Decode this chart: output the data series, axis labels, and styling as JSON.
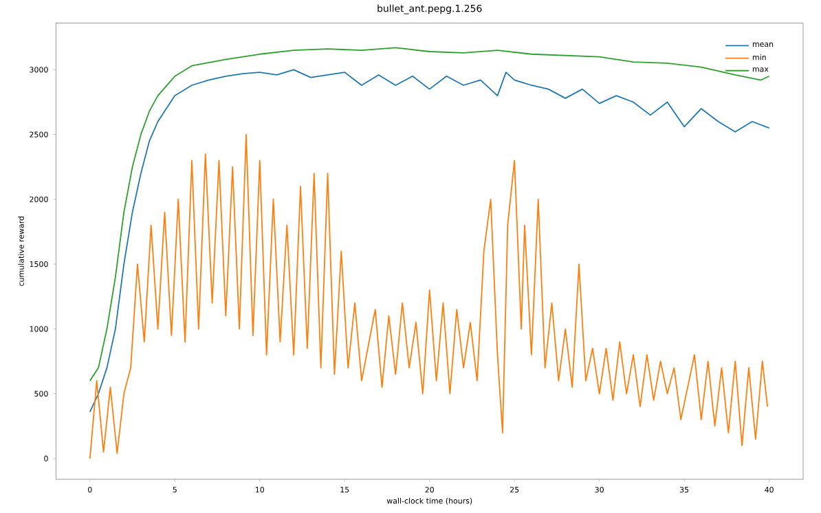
{
  "chart_data": {
    "type": "line",
    "title": "bullet_ant.pepg.1.256",
    "xlabel": "wall-clock time (hours)",
    "ylabel": "cumulative reward",
    "xlim": [
      -2,
      42
    ],
    "ylim": [
      -160,
      3360
    ],
    "xticks": [
      0,
      5,
      10,
      15,
      20,
      25,
      30,
      35,
      40
    ],
    "yticks": [
      0,
      500,
      1000,
      1500,
      2000,
      2500,
      3000
    ],
    "legend": "top right",
    "series": [
      {
        "name": "mean",
        "color": "#1f77b4",
        "x": [
          0,
          0.5,
          1,
          1.5,
          2,
          2.5,
          3,
          3.5,
          4,
          5,
          6,
          7,
          8,
          9,
          10,
          11,
          12,
          13,
          14,
          15,
          16,
          17,
          18,
          19,
          20,
          21,
          22,
          23,
          24,
          24.5,
          25,
          26,
          27,
          28,
          29,
          30,
          31,
          32,
          33,
          34,
          35,
          36,
          37,
          38,
          39,
          40
        ],
        "values": [
          360,
          500,
          700,
          1000,
          1500,
          1900,
          2200,
          2450,
          2600,
          2800,
          2880,
          2920,
          2950,
          2970,
          2980,
          2960,
          3000,
          2940,
          2960,
          2980,
          2880,
          2960,
          2880,
          2950,
          2850,
          2950,
          2880,
          2920,
          2800,
          2980,
          2920,
          2880,
          2850,
          2780,
          2850,
          2740,
          2800,
          2750,
          2650,
          2750,
          2560,
          2700,
          2600,
          2520,
          2600,
          2550
        ]
      },
      {
        "name": "min",
        "color": "#ff7f0e",
        "x": [
          0,
          0.4,
          0.8,
          1.2,
          1.6,
          2.0,
          2.4,
          2.8,
          3.2,
          3.6,
          4.0,
          4.4,
          4.8,
          5.2,
          5.6,
          6.0,
          6.4,
          6.8,
          7.2,
          7.6,
          8.0,
          8.4,
          8.8,
          9.2,
          9.6,
          10.0,
          10.4,
          10.8,
          11.2,
          11.6,
          12.0,
          12.4,
          12.8,
          13.2,
          13.6,
          14.0,
          14.4,
          14.8,
          15.2,
          15.6,
          16.0,
          16.8,
          17.2,
          17.6,
          18.0,
          18.4,
          18.8,
          19.2,
          19.6,
          20.0,
          20.4,
          20.8,
          21.2,
          21.6,
          22.0,
          22.4,
          22.8,
          23.2,
          23.6,
          24.0,
          24.3,
          24.6,
          25.0,
          25.4,
          25.6,
          26.0,
          26.4,
          26.8,
          27.2,
          27.6,
          28.0,
          28.4,
          28.8,
          29.2,
          29.6,
          30.0,
          30.4,
          30.8,
          31.2,
          31.6,
          32.0,
          32.4,
          32.8,
          33.2,
          33.6,
          34.0,
          34.4,
          34.8,
          35.2,
          35.6,
          36.0,
          36.4,
          36.8,
          37.2,
          37.6,
          38.0,
          38.4,
          38.8,
          39.2,
          39.6,
          39.9
        ],
        "values": [
          0,
          600,
          50,
          550,
          40,
          500,
          700,
          1500,
          900,
          1800,
          1000,
          1900,
          950,
          2000,
          900,
          2300,
          1000,
          2350,
          1200,
          2300,
          1100,
          2250,
          1000,
          2500,
          950,
          2300,
          800,
          2000,
          900,
          1800,
          800,
          2100,
          850,
          2200,
          700,
          2200,
          650,
          1600,
          700,
          1200,
          600,
          1150,
          550,
          1100,
          650,
          1200,
          700,
          1050,
          500,
          1300,
          600,
          1200,
          500,
          1150,
          700,
          1050,
          600,
          1600,
          2000,
          800,
          200,
          1800,
          2300,
          1000,
          1800,
          800,
          2000,
          700,
          1200,
          600,
          1000,
          550,
          1500,
          600,
          850,
          500,
          850,
          450,
          900,
          500,
          800,
          400,
          800,
          450,
          750,
          500,
          700,
          300,
          550,
          800,
          300,
          750,
          250,
          700,
          200,
          750,
          100,
          700,
          150,
          750,
          400
        ]
      },
      {
        "name": "max",
        "color": "#2ca02c",
        "x": [
          0,
          0.5,
          1,
          1.5,
          2,
          2.5,
          3,
          3.5,
          4,
          5,
          6,
          8,
          10,
          12,
          14,
          16,
          18,
          20,
          22,
          24,
          26,
          28,
          30,
          32,
          34,
          36,
          38,
          39.5,
          40
        ],
        "values": [
          600,
          700,
          1000,
          1400,
          1900,
          2250,
          2500,
          2680,
          2800,
          2950,
          3030,
          3080,
          3120,
          3150,
          3160,
          3150,
          3170,
          3140,
          3130,
          3150,
          3120,
          3110,
          3100,
          3060,
          3050,
          3020,
          2960,
          2920,
          2950
        ]
      }
    ]
  }
}
